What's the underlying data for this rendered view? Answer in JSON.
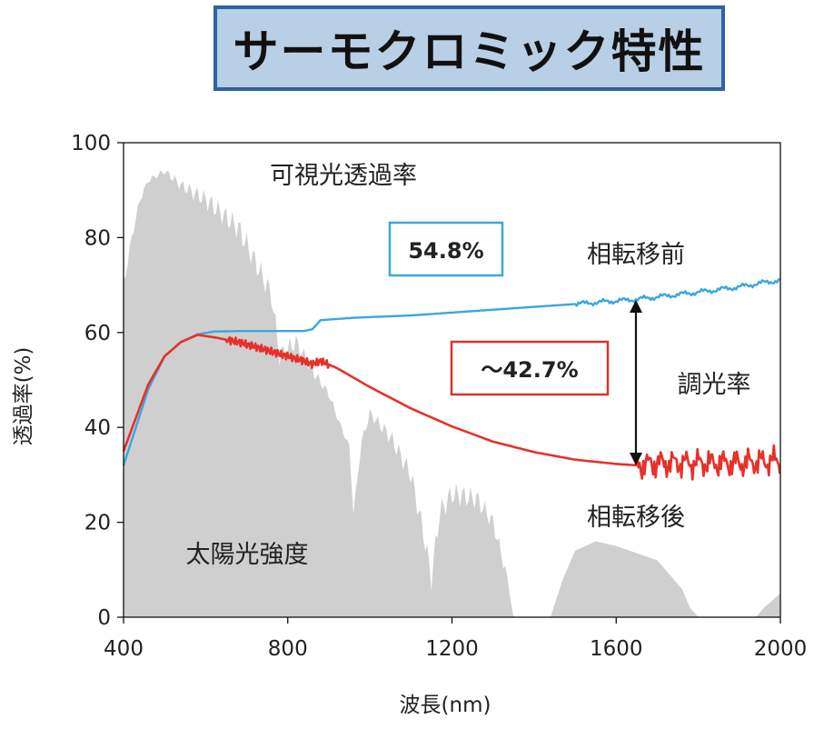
{
  "title": "サーモクロミック特性",
  "chart_data": {
    "type": "line",
    "xlabel": "波長(nm)",
    "ylabel": "透過率(%)",
    "xlim": [
      400,
      2000
    ],
    "ylim": [
      0,
      100
    ],
    "xticks": [
      400,
      800,
      1200,
      1600,
      2000
    ],
    "yticks": [
      0,
      20,
      40,
      60,
      80,
      100
    ],
    "grid": false,
    "colors": {
      "before": "#3aa7de",
      "after": "#e8302a",
      "solar": "#cfcfcf",
      "box_blue": "#3aa7de",
      "box_red": "#d9332b"
    },
    "series": [
      {
        "name": "相転移前",
        "x": [
          400,
          430,
          460,
          500,
          540,
          580,
          620,
          680,
          760,
          840,
          860,
          880,
          960,
          1100,
          1300,
          1500,
          1650,
          1800,
          1900,
          1950,
          2000
        ],
        "y": [
          32,
          40,
          48,
          55,
          58,
          59.6,
          60.2,
          60.3,
          60.3,
          60.3,
          60.7,
          62.6,
          63.1,
          63.6,
          64.8,
          66.0,
          67.0,
          68.5,
          69.6,
          70.4,
          71.0
        ]
      },
      {
        "name": "相転移後",
        "x": [
          400,
          430,
          460,
          500,
          540,
          580,
          620,
          680,
          760,
          840,
          860,
          880,
          920,
          1000,
          1100,
          1200,
          1300,
          1400,
          1500,
          1600,
          1650,
          1700,
          1800,
          1900,
          2000
        ],
        "y": [
          35,
          42,
          49,
          55,
          58,
          59.5,
          59,
          58,
          56,
          54,
          53.3,
          54,
          52.5,
          48.5,
          44,
          40.2,
          37,
          34.8,
          33.2,
          32.3,
          32,
          32.5,
          32.5,
          32.5,
          33
        ]
      },
      {
        "name": "太陽光強度",
        "x": [
          400,
          420,
          440,
          460,
          480,
          500,
          540,
          600,
          680,
          720,
          760,
          780,
          820,
          860,
          900,
          930,
          950,
          960,
          980,
          1000,
          1050,
          1100,
          1130,
          1150,
          1170,
          1200,
          1260,
          1300,
          1330,
          1350,
          1360,
          1420,
          1440,
          1470,
          1500,
          1550,
          1600,
          1700,
          1760,
          1780,
          1800,
          1940,
          1960,
          2000
        ],
        "y": [
          70,
          80,
          88,
          92,
          93,
          94,
          91,
          88,
          82,
          75,
          68,
          55,
          58,
          52,
          47,
          40,
          36,
          22,
          37,
          43,
          38,
          30,
          18,
          8,
          22,
          26,
          25,
          20,
          10,
          0,
          0,
          0,
          0,
          8,
          14,
          16,
          15,
          12,
          6,
          2,
          0,
          0,
          2,
          5
        ]
      }
    ],
    "annotations": {
      "visible_transmittance": "可視光透過率",
      "solar_intensity": "太陽光強度",
      "value_before": "54.8%",
      "value_after": "～42.7%",
      "modulation": "調光率",
      "label_before": "相転移前",
      "label_after": "相転移後"
    }
  }
}
